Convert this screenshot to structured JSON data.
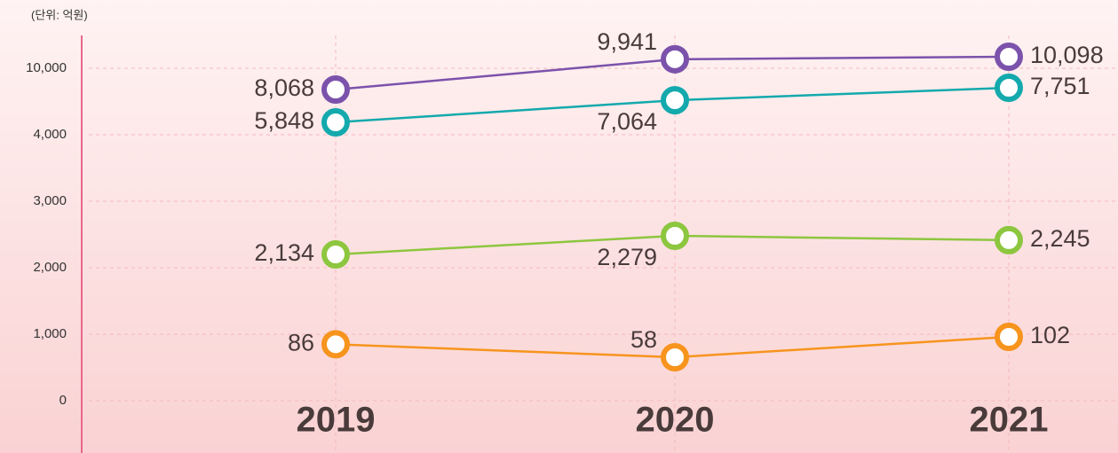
{
  "chart_data": {
    "type": "line",
    "unit_label": "(단위: 억원)",
    "categories": [
      "2019",
      "2020",
      "2021"
    ],
    "yticks": [
      {
        "value": 0,
        "label": "0"
      },
      {
        "value": 1000,
        "label": "1,000"
      },
      {
        "value": 2000,
        "label": "2,000"
      },
      {
        "value": 3000,
        "label": "3,000"
      },
      {
        "value": 4000,
        "label": "4,000"
      },
      {
        "value": 10000,
        "label": "10,000"
      }
    ],
    "grid": true,
    "series": [
      {
        "color": "#7b52ab",
        "values": [
          8068,
          9941,
          10098
        ],
        "value_labels": [
          "8,068",
          "9,941",
          "10,098"
        ]
      },
      {
        "color": "#13a9ad",
        "values": [
          5848,
          7064,
          7751
        ],
        "value_labels": [
          "5,848",
          "7,064",
          "7,751"
        ]
      },
      {
        "color": "#8dc63f",
        "values": [
          2134,
          2279,
          2245
        ],
        "value_labels": [
          "2,134",
          "2,279",
          "2,245"
        ]
      },
      {
        "color": "#f7941d",
        "values": [
          86,
          58,
          102
        ],
        "value_labels": [
          "86",
          "58",
          "102"
        ]
      }
    ]
  }
}
